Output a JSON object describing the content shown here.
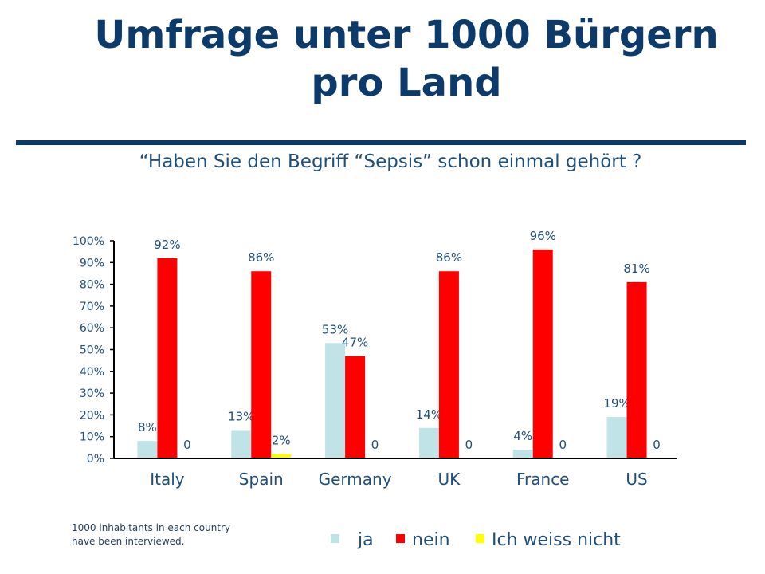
{
  "title": {
    "line1": "Umfrage unter 1000 Bürgern",
    "line2": "pro Land"
  },
  "subtitle": "“Haben Sie den Begriff “Sepsis” schon einmal gehört ?",
  "note": {
    "line1": "1000 inhabitants in each country",
    "line2": "have been interviewed."
  },
  "colors": {
    "ja": "#bfe3e6",
    "nein": "#ff0000",
    "weiss_nicht": "#ffff00",
    "title": "#0b3a6b",
    "text": "#1f4e79"
  },
  "chart_data": {
    "type": "bar",
    "categories": [
      "Italy",
      "Spain",
      "Germany",
      "UK",
      "France",
      "US"
    ],
    "series": [
      {
        "name": "ja",
        "values": [
          8,
          13,
          53,
          14,
          4,
          19
        ],
        "labels": [
          "8%",
          "13%",
          "53%",
          "14%",
          "4%",
          "19%"
        ]
      },
      {
        "name": "nein",
        "values": [
          92,
          86,
          47,
          86,
          96,
          81
        ],
        "labels": [
          "92%",
          "86%",
          "47%",
          "86%",
          "96%",
          "81%"
        ]
      },
      {
        "name": "Ich weiss nicht",
        "values": [
          0,
          2,
          0,
          0,
          0,
          0
        ],
        "labels": [
          "0",
          "2%",
          "0",
          "0",
          "0",
          "0"
        ]
      }
    ],
    "ylim": [
      0,
      100
    ],
    "yticks": [
      "0%",
      "10%",
      "20%",
      "30%",
      "40%",
      "50%",
      "60%",
      "70%",
      "80%",
      "90%",
      "100%"
    ],
    "grid": false,
    "legend_position": "bottom"
  }
}
